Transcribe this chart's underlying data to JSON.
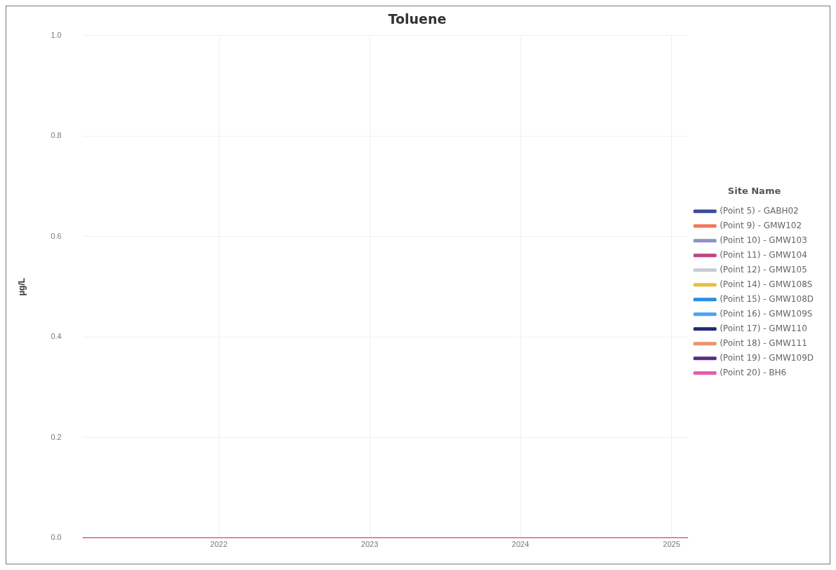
{
  "chart_data": {
    "type": "line",
    "title": "Toluene",
    "ylabel": "μg/L",
    "legend_title": "Site Name",
    "x": [
      "2021-02-05",
      "2025-02-10"
    ],
    "xlim": [
      "2021-02-05",
      "2025-02-10"
    ],
    "xticks": [
      "2022",
      "2023",
      "2024",
      "2025"
    ],
    "ylim": [
      0,
      1
    ],
    "yticks": [
      {
        "value": 0,
        "label": "0.0"
      },
      {
        "value": 0.2,
        "label": "0.2"
      },
      {
        "value": 0.4,
        "label": "0.4"
      },
      {
        "value": 0.6,
        "label": "0.6"
      },
      {
        "value": 0.8,
        "label": "0.8"
      },
      {
        "value": 1,
        "label": "1.0"
      }
    ],
    "grid": true,
    "legend": "right",
    "marker": "none",
    "line_style": "solid",
    "series": [
      {
        "name": "(Point 5) - GABH02",
        "color": "#3a4a9f",
        "values": [
          null,
          null
        ]
      },
      {
        "name": "(Point 9) - GMW102",
        "color": "#f07b5b",
        "values": [
          null,
          null
        ]
      },
      {
        "name": "(Point 10) - GMW103",
        "color": "#8f8fc9",
        "values": [
          null,
          null
        ]
      },
      {
        "name": "(Point 11) - GMW104",
        "color": "#c2447e",
        "values": [
          null,
          null
        ]
      },
      {
        "name": "(Point 12) - GMW105",
        "color": "#c8cad6",
        "values": [
          null,
          null
        ]
      },
      {
        "name": "(Point 14) - GMW108S",
        "color": "#e6c13f",
        "values": [
          null,
          null
        ]
      },
      {
        "name": "(Point 15) - GMW108D",
        "color": "#2a8ee0",
        "values": [
          null,
          null
        ]
      },
      {
        "name": "(Point 16) - GMW109S",
        "color": "#4aa3f0",
        "values": [
          null,
          null
        ]
      },
      {
        "name": "(Point 17) - GMW110",
        "color": "#1f2a7a",
        "values": [
          null,
          null
        ]
      },
      {
        "name": "(Point 18) - GMW111",
        "color": "#e8956b",
        "values": [
          null,
          null
        ]
      },
      {
        "name": "(Point 19) - GMW109D",
        "color": "#5b2a86",
        "values": [
          null,
          null
        ]
      },
      {
        "name": "(Point 20) - BH6",
        "color": "#e85aa8",
        "values": [
          0,
          0
        ]
      }
    ]
  }
}
